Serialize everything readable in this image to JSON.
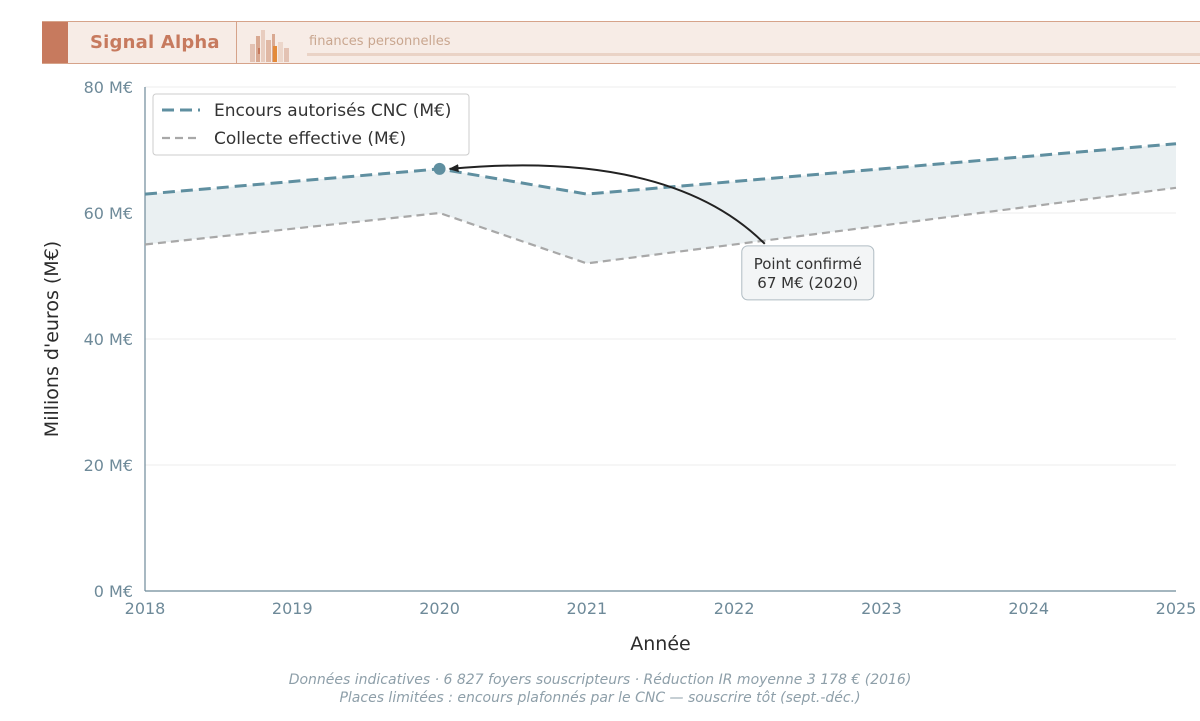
{
  "header": {
    "brand": "Signal Alpha",
    "tagline": "finances personnelles",
    "accent_color": "#c77a5e"
  },
  "chart_data": {
    "type": "line",
    "x": [
      2018,
      2020,
      2021,
      2025
    ],
    "xticks": [
      "2018",
      "2019",
      "2020",
      "2021",
      "2022",
      "2023",
      "2024",
      "2025"
    ],
    "yticks": [
      "0 M€",
      "20 M€",
      "40 M€",
      "60 M€",
      "80 M€"
    ],
    "xlim": [
      2018,
      2025
    ],
    "ylim": [
      0,
      80
    ],
    "xlabel": "Année",
    "ylabel": "Millions d'euros (M€)",
    "grid": "horizontal",
    "legend_position": "top-left",
    "series": [
      {
        "name": "Encours autorisés CNC (M€)",
        "values": [
          63,
          67,
          63,
          71
        ],
        "color": "#5f8fa0",
        "style": "dashed"
      },
      {
        "name": "Collecte effective (M€)",
        "values": [
          55,
          60,
          52,
          64
        ],
        "color": "#a8a8a8",
        "style": "dashed"
      }
    ],
    "fill_between": {
      "color": "#e9eff1"
    },
    "highlight_point": {
      "x": 2020,
      "y": 67
    },
    "annotation": {
      "line1": "Point confirmé",
      "line2": "67 M€ (2020)",
      "x": 2022.5,
      "y": 50.5
    }
  },
  "footer": {
    "line1": "Données indicatives · 6 827 foyers souscripteurs · Réduction IR moyenne 3 178 € (2016)",
    "line2": "Places limitées : encours plafonnés par le CNC — souscrire tôt (sept.-déc.)"
  }
}
